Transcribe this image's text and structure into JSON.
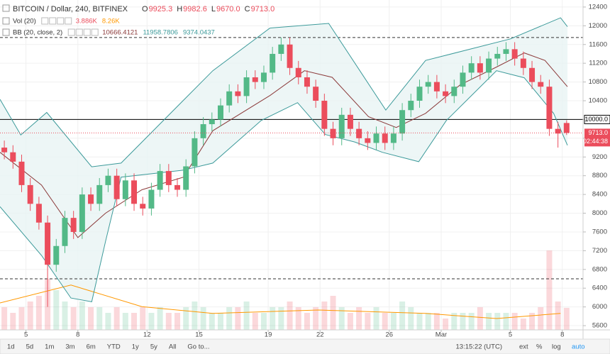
{
  "chart_data": {
    "type": "candlestick",
    "title": "BITCOIN / Dollar, 240, BITFINEX",
    "ohlc_legend": [
      {
        "label": "O",
        "value": "9925.3"
      },
      {
        "label": "H",
        "value": "9982.6"
      },
      {
        "label": "L",
        "value": "9670.0"
      },
      {
        "label": "C",
        "value": "9713.0"
      }
    ],
    "indicators": [
      {
        "name": "Vol (20)",
        "values": [
          "3.886K",
          "8.26K"
        ],
        "colors": [
          "#eb4d5c",
          "#ff9800"
        ]
      },
      {
        "name": "BB (20, close, 2)",
        "values": [
          "10666.4121",
          "11958.7806",
          "9374.0437"
        ],
        "colors": [
          "#8b3a3a",
          "#3c9a9a",
          "#3c9a9a"
        ]
      }
    ],
    "x": [
      -1.25,
      -0.75,
      -0.25,
      0.25,
      0.75,
      1.25,
      1.75,
      2.25,
      2.75,
      3.25,
      3.75,
      4.25,
      4.75,
      5.25,
      5.75,
      6.25,
      6.75,
      7.25,
      7.75,
      8.25,
      8.75,
      9.25,
      9.75,
      10.25,
      10.75,
      11.25,
      11.75,
      12.25,
      12.75,
      13.25,
      13.75,
      14.25,
      14.75,
      15.25,
      15.75,
      16.25,
      16.75,
      17.25,
      17.75,
      18.25,
      18.75,
      19.25,
      19.75,
      20.25,
      20.75,
      21.25,
      21.75,
      22.25,
      22.75,
      23.25,
      23.75,
      24.25,
      24.75,
      25.25,
      25.75,
      26.25,
      26.75,
      27.25,
      27.75,
      28.25,
      28.75,
      29.25,
      29.75,
      30.25,
      30.75,
      31.25
    ],
    "open": [
      9400,
      9300,
      9100,
      8600,
      8200,
      7800,
      6900,
      7300,
      7900,
      7600,
      8400,
      8200,
      8600,
      8800,
      8300,
      8700,
      8200,
      8100,
      8500,
      8900,
      8600,
      8500,
      9000,
      9600,
      9900,
      10000,
      10300,
      10600,
      10500,
      10900,
      10800,
      11000,
      11400,
      11600,
      11100,
      10900,
      10700,
      10400,
      9800,
      9600,
      10100,
      9800,
      9600,
      9500,
      9700,
      9500,
      9700,
      10200,
      10400,
      10700,
      10800,
      10600,
      10500,
      10700,
      11000,
      11200,
      11000,
      11300,
      11400,
      11500,
      11300,
      11100,
      10800,
      10700,
      9800,
      9925.3
    ],
    "high": [
      9550,
      9450,
      9250,
      8750,
      8350,
      7950,
      7450,
      8050,
      8050,
      8550,
      8550,
      8750,
      8950,
      8950,
      8850,
      8850,
      8350,
      8650,
      9050,
      9050,
      8750,
      9150,
      9750,
      10050,
      10150,
      10450,
      10750,
      10750,
      11050,
      11050,
      11150,
      11550,
      11750,
      11750,
      11250,
      11050,
      10850,
      10550,
      9950,
      10250,
      10250,
      9950,
      9750,
      9850,
      9850,
      9850,
      10350,
      10550,
      10850,
      10950,
      10950,
      10750,
      10850,
      11150,
      11350,
      11350,
      11450,
      11550,
      11650,
      11650,
      11450,
      11250,
      10950,
      10850,
      9950,
      9982.6
    ],
    "low": [
      9150,
      8950,
      8450,
      8050,
      7650,
      6000,
      6750,
      7150,
      7450,
      7450,
      8050,
      8050,
      8450,
      8150,
      8150,
      8050,
      7950,
      7950,
      8350,
      8450,
      8350,
      8350,
      8850,
      9450,
      9750,
      9850,
      10150,
      10350,
      10350,
      10650,
      10650,
      10850,
      11250,
      10950,
      10750,
      10550,
      10250,
      9650,
      9450,
      9450,
      9650,
      9450,
      9350,
      9350,
      9350,
      9350,
      9550,
      10050,
      10250,
      10550,
      10450,
      10350,
      10350,
      10550,
      10850,
      10850,
      10850,
      11150,
      11250,
      11150,
      10950,
      10650,
      10550,
      9650,
      9400,
      9670
    ],
    "close": [
      9300,
      9100,
      8600,
      8200,
      7800,
      6900,
      7300,
      7900,
      7600,
      8400,
      8200,
      8600,
      8800,
      8300,
      8700,
      8200,
      8100,
      8500,
      8900,
      8600,
      8500,
      9000,
      9600,
      9900,
      10000,
      10300,
      10600,
      10500,
      10900,
      10800,
      11000,
      11400,
      11600,
      11100,
      10900,
      10700,
      10400,
      9800,
      9600,
      10100,
      9800,
      9600,
      9500,
      9700,
      9500,
      9700,
      10200,
      10400,
      10700,
      10800,
      10600,
      10500,
      10700,
      11000,
      11200,
      11000,
      11300,
      11400,
      11500,
      11300,
      11100,
      10800,
      10700,
      9800,
      9700,
      9713
    ],
    "volume": [
      4,
      3,
      4,
      5,
      6,
      9,
      7,
      5,
      4,
      5,
      4,
      4,
      3,
      4,
      3,
      3,
      4,
      3,
      4,
      3,
      3,
      4,
      5,
      4,
      3,
      3,
      4,
      4,
      5,
      3,
      3,
      4,
      4,
      5,
      4,
      3,
      4,
      5,
      6,
      4,
      3,
      4,
      3,
      4,
      3,
      3,
      5,
      4,
      3,
      3,
      3,
      2,
      3,
      3,
      3,
      4,
      3,
      3,
      3,
      3,
      2,
      3,
      4,
      14,
      5,
      3.886
    ],
    "volume_ma": {
      "color": "#ff9800",
      "x": [
        -1.5,
        2.6,
        6.7,
        10.8,
        16.9,
        23.1,
        27.2,
        30.9
      ],
      "values": [
        4.75,
        7.9,
        4.1,
        2.9,
        3.5,
        2.9,
        2,
        2.9
      ]
    },
    "bollinger": {
      "fill": "#e8f4f4",
      "lines": [
        {
          "color": "#3c9a9a",
          "x": [
            -1.5,
            -0.3,
            1.2,
            3.8,
            5.5,
            10.8,
            14.1,
            17.5,
            20.8,
            23.1,
            28.0,
            30.9,
            31.3
          ],
          "values": [
            10430,
            9670,
            10150,
            8990,
            9070,
            11040,
            11950,
            12050,
            10200,
            11260,
            11720,
            12170,
            11980
          ]
        },
        {
          "color": "#8b3a3a",
          "x": [
            -1.5,
            0.9,
            3.0,
            4.6,
            6.7,
            9.1,
            10.8,
            14.1,
            16.1,
            17.7,
            19.8,
            21.4,
            23.1,
            25.1,
            27.2,
            28.8,
            30.0,
            31.3
          ],
          "values": [
            9300,
            8600,
            7480,
            8000,
            8500,
            8770,
            9760,
            10510,
            11040,
            10900,
            10060,
            9830,
            10130,
            10740,
            11120,
            11420,
            11260,
            10700
          ]
        },
        {
          "color": "#3c9a9a",
          "x": [
            -1.5,
            0.9,
            2.6,
            3.8,
            4.6,
            5.5,
            9.1,
            10.8,
            13.6,
            15.7,
            17.3,
            19.0,
            20.6,
            22.7,
            24.3,
            27.2,
            28.8,
            30.5,
            31.3
          ],
          "values": [
            8140,
            7100,
            6190,
            6110,
            7400,
            8770,
            8920,
            9070,
            9980,
            10360,
            9680,
            9520,
            9300,
            9100,
            9980,
            11040,
            10890,
            10130,
            9450
          ]
        }
      ]
    },
    "levels": [
      11750,
      6600
    ],
    "marker_line": {
      "value": 10000,
      "label": "10000.0"
    },
    "last_price": {
      "value": 9713,
      "label": "9713.0",
      "countdown": "02:44:38",
      "color": "#eb4d5c"
    },
    "up_color": "#53b987",
    "down_color": "#eb4d5c",
    "grid": true,
    "xlim": [
      -1.5,
      32.2
    ],
    "ylim": [
      5510,
      12550
    ],
    "yticks": [
      5600,
      6000,
      6400,
      6800,
      7200,
      7600,
      8000,
      8400,
      8800,
      9200,
      9600,
      10000,
      10400,
      10800,
      11200,
      11600,
      12000,
      12400
    ],
    "xticks": [
      {
        "value": 0,
        "label": "5"
      },
      {
        "value": 3,
        "label": "8"
      },
      {
        "value": 7,
        "label": "12"
      },
      {
        "value": 10,
        "label": "15"
      },
      {
        "value": 14,
        "label": "19"
      },
      {
        "value": 17,
        "label": "22"
      },
      {
        "value": 21,
        "label": "26"
      },
      {
        "value": 24,
        "label": "Mar"
      },
      {
        "value": 28,
        "label": "5"
      },
      {
        "value": 31,
        "label": "8"
      }
    ]
  },
  "toolbar": {
    "ranges": [
      "1d",
      "5d",
      "1m",
      "3m",
      "6m",
      "YTD",
      "1y",
      "5y",
      "All"
    ],
    "goto": "Go to...",
    "clock": "13:15:22 (UTC)",
    "options": [
      "ext",
      "%",
      "log",
      "auto"
    ]
  }
}
